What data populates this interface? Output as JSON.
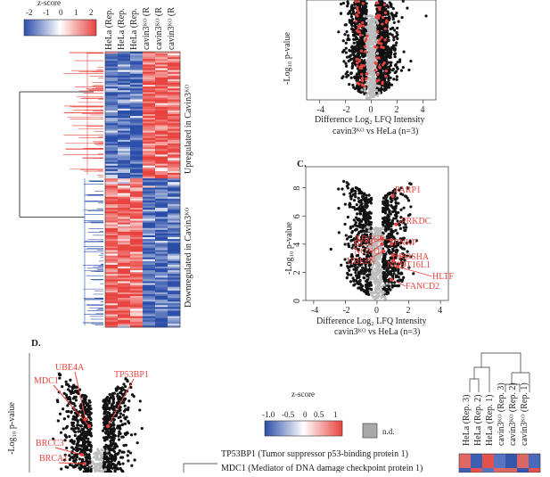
{
  "colors": {
    "red": "#e8423e",
    "blue": "#2b4ea8",
    "grey": "#bdbdbd",
    "black": "#111111",
    "white": "#ffffff"
  },
  "panel_c_label": "C.",
  "panel_d_label": "D.",
  "heatmap_top": {
    "scale_title": "z-score",
    "scale_ticks": [
      "-2",
      "-1",
      "0",
      "1",
      "2"
    ],
    "columns": [
      "HeLa (Rep.",
      "HeLa (Rep.",
      "HeLa (Rep.",
      "cavin3ᴷᴼ (R",
      "cavin3ᴷᴼ (R",
      "cavin3ᴷᴼ (R"
    ],
    "up_label": "Upregulated in Cavin3ᴷᴼ",
    "down_label": "Downregulated in Cavin3ᴷᴼ"
  },
  "volcano_b": {
    "ylabel": "-Log₁₀ p-value",
    "xlabel": "Difference Log₂ LFQ Intensity",
    "xlabel2": "cavin3ᴷᴼ vs HeLa (n=3)",
    "xticks": [
      "-4",
      "-2",
      "0",
      "2",
      "4"
    ]
  },
  "volcano_c": {
    "ylabel": "-Log₁₀ p-value",
    "xlabel": "Difference Log₂ LFQ Intensity",
    "xlabel2": "cavin3ᴷᴼ vs HeLa (n=3)",
    "xticks": [
      "-4",
      "-2",
      "0",
      "2",
      "4"
    ],
    "yticks": [
      "0",
      "2",
      "4",
      "6",
      "8"
    ],
    "genes": [
      "PARP1",
      "PRKDC",
      "XRCC5",
      "BLM",
      "NONO",
      "PNKP",
      "UBE2N",
      "DROSHA",
      "NUDT16L1",
      "HLTF",
      "FANCD2"
    ]
  },
  "volcano_d": {
    "ylabel": "-Log₁₀ p-value",
    "genes": [
      "UBE4A",
      "TP53BP1",
      "MDC1",
      "BRCC3",
      "BRCA1"
    ]
  },
  "heatmap_bottom": {
    "scale_title": "z-score",
    "scale_ticks": [
      "-1.0",
      "-0.5",
      "0",
      "0.5",
      "1"
    ],
    "nd_label": "n.d.",
    "columns": [
      "HeLa (Rep. 3)",
      "HeLa (Rep. 2)",
      "HeLa (Rep. 1)",
      "cavin3ᴷᴼ (Rep. 3)",
      "cavin3ᴷᴼ (Rep. 2)",
      "cavin3ᴷᴼ (Rep. 1)"
    ],
    "row1": "TP53BP1 (Tumor suppressor p53-binding protein 1)",
    "row2": "MDC1 (Mediator of DNA damage checkpoint protein 1)"
  },
  "chart_data": [
    {
      "type": "heatmap",
      "title": "",
      "columns": [
        "HeLa (Rep.",
        "HeLa (Rep.",
        "HeLa (Rep.",
        "cavin3KO (R",
        "cavin3KO (R",
        "cavin3KO (R"
      ],
      "colorscale": {
        "min": -2,
        "max": 2,
        "label": "z-score"
      },
      "groups": [
        "Upregulated in Cavin3KO",
        "Downregulated in Cavin3KO"
      ]
    },
    {
      "type": "scatter",
      "title": "",
      "xlabel": "Difference Log2 LFQ Intensity / cavin3KO vs HeLa (n=3)",
      "ylabel": "-Log10 p-value",
      "xlim": [
        -5,
        5
      ]
    },
    {
      "type": "scatter",
      "title": "",
      "xlabel": "Difference Log2 LFQ Intensity / cavin3KO vs HeLa (n=3)",
      "ylabel": "-Log10 p-value",
      "xlim": [
        -4.5,
        4.5
      ],
      "ylim": [
        0,
        9.5
      ],
      "highlighted": [
        {
          "label": "PARP1",
          "x": 1.0,
          "y": 7.4
        },
        {
          "label": "PRKDC",
          "x": 1.2,
          "y": 5.4
        },
        {
          "label": "XRCC5",
          "x": 0.9,
          "y": 4.3
        },
        {
          "label": "BLM",
          "x": 0.3,
          "y": 4.4
        },
        {
          "label": "NONO",
          "x": 0.3,
          "y": 4.0
        },
        {
          "label": "PNKP",
          "x": 0.9,
          "y": 4.0
        },
        {
          "label": "UBE2N",
          "x": 0.4,
          "y": 3.5
        },
        {
          "label": "DROSHA",
          "x": 1.0,
          "y": 3.2
        },
        {
          "label": "NUDT16L1",
          "x": 1.0,
          "y": 2.8
        },
        {
          "label": "HLTF",
          "x": 1.3,
          "y": 2.4
        },
        {
          "label": "FANCD2",
          "x": 0.9,
          "y": 1.5
        }
      ]
    },
    {
      "type": "scatter",
      "title": "",
      "ylabel": "-Log10 p-value",
      "highlighted": [
        "UBE4A",
        "TP53BP1",
        "MDC1",
        "BRCC3",
        "BRCA1"
      ]
    },
    {
      "type": "heatmap",
      "title": "",
      "columns": [
        "HeLa (Rep. 3)",
        "HeLa (Rep. 2)",
        "HeLa (Rep. 1)",
        "cavin3KO (Rep. 3)",
        "cavin3KO (Rep. 2)",
        "cavin3KO (Rep. 1)"
      ],
      "rows": [
        "TP53BP1 (Tumor suppressor p53-binding protein 1)",
        "MDC1 (Mediator of DNA damage checkpoint protein 1)"
      ],
      "colorscale": {
        "min": -1,
        "max": 1,
        "label": "z-score"
      }
    }
  ]
}
